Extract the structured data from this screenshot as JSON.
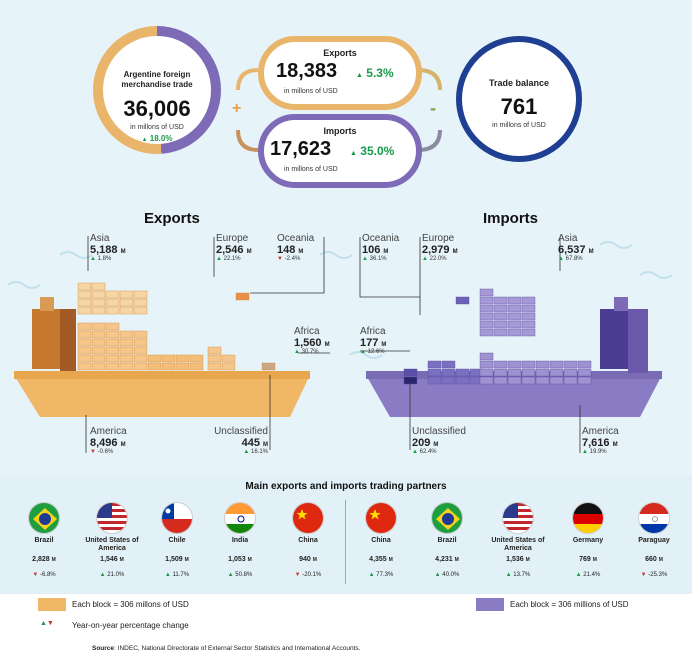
{
  "summary": {
    "total": {
      "title": "Argentine foreign merchandise trade",
      "value": "36,006",
      "units": "in millons of USD",
      "change": "18.0%"
    },
    "exports": {
      "title": "Exports",
      "value": "18,383",
      "units": "in millons of USD",
      "change": "5.3%"
    },
    "imports": {
      "title": "Imports",
      "value": "17,623",
      "units": "in millons of USD",
      "change": "35.0%"
    },
    "plus": "+",
    "minus": "-",
    "balance": {
      "title": "Trade balance",
      "value": "761",
      "units": "in millons of USD"
    }
  },
  "exports_title": "Exports",
  "imports_title": "Imports",
  "unit_m": "M",
  "chart_data": [
    {
      "type": "bar",
      "title": "Exports",
      "categories": [
        "Asia",
        "Europe",
        "Oceania",
        "Africa",
        "America",
        "Unclassified"
      ],
      "values": [
        5188,
        2546,
        148,
        1560,
        8496,
        445
      ],
      "value_labels": [
        "5,188",
        "2,546",
        "148",
        "1,560",
        "8,496",
        "445"
      ],
      "changes": [
        {
          "text": "1.8%",
          "dir": "up"
        },
        {
          "text": "22.1%",
          "dir": "up"
        },
        {
          "text": "-2.4%",
          "dir": "down"
        },
        {
          "text": "30.7%",
          "dir": "up"
        },
        {
          "text": "-0.6%",
          "dir": "down"
        },
        {
          "text": "16.1%",
          "dir": "up"
        }
      ],
      "units": "millions of USD",
      "block_size": 306
    },
    {
      "type": "bar",
      "title": "Imports",
      "categories": [
        "Oceania",
        "Europe",
        "Asia",
        "Africa",
        "Unclassified",
        "America"
      ],
      "values": [
        106,
        2979,
        6537,
        177,
        209,
        7616
      ],
      "value_labels": [
        "106",
        "2,979",
        "6,537",
        "177",
        "209",
        "7,616"
      ],
      "changes": [
        {
          "text": "36.1%",
          "dir": "up"
        },
        {
          "text": "22.0%",
          "dir": "up"
        },
        {
          "text": "67.8%",
          "dir": "up"
        },
        {
          "text": "12.6%",
          "dir": "up"
        },
        {
          "text": "62.4%",
          "dir": "up"
        },
        {
          "text": "19.9%",
          "dir": "up"
        }
      ],
      "units": "millions of USD",
      "block_size": 306
    }
  ],
  "partners": {
    "title": "Main exports and imports trading partners",
    "exports": [
      {
        "name": "Brazil",
        "value": "2,828",
        "change": "-6.8%",
        "dir": "down",
        "flag": "brazil"
      },
      {
        "name": "United States of America",
        "value": "1,546",
        "change": "21.0%",
        "dir": "up",
        "flag": "usa"
      },
      {
        "name": "Chile",
        "value": "1,509",
        "change": "11.7%",
        "dir": "up",
        "flag": "chile"
      },
      {
        "name": "India",
        "value": "1,053",
        "change": "50.8%",
        "dir": "up",
        "flag": "india"
      },
      {
        "name": "China",
        "value": "940",
        "change": "-20.1%",
        "dir": "down",
        "flag": "china"
      }
    ],
    "imports": [
      {
        "name": "China",
        "value": "4,355",
        "change": "77.3%",
        "dir": "up",
        "flag": "china"
      },
      {
        "name": "Brazil",
        "value": "4,231",
        "change": "40.0%",
        "dir": "up",
        "flag": "brazil"
      },
      {
        "name": "United States of America",
        "value": "1,536",
        "change": "13.7%",
        "dir": "up",
        "flag": "usa"
      },
      {
        "name": "Germany",
        "value": "769",
        "change": "21.4%",
        "dir": "up",
        "flag": "germany"
      },
      {
        "name": "Paraguay",
        "value": "660",
        "change": "-25.3%",
        "dir": "down",
        "flag": "paraguay"
      }
    ]
  },
  "legend": {
    "exports_block": "Each block = 306 millons of USD",
    "imports_block": "Each block = 306 millions of USD",
    "change": "Year-on-year percentage change"
  },
  "source": {
    "label": "Source",
    "text": ": INDEC, National Directorate of External Sector Statistics and International Accounts."
  },
  "colors": {
    "export_ring": "#e9b56a",
    "import_ring": "#7e6bb7",
    "balance_ring": "#1f3f93",
    "export_hull": "#f0b866",
    "import_hull": "#8a7cc4",
    "background": "#e6f3f8",
    "up": "#1a9a4a",
    "down": "#c0392b"
  }
}
